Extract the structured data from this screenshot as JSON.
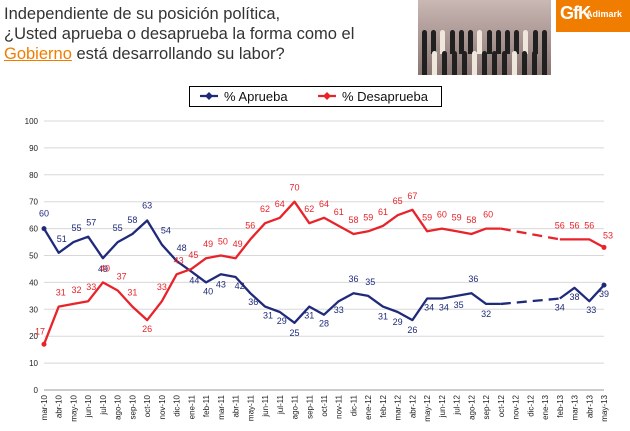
{
  "header": {
    "title_line1": "Independiente de su posición política,",
    "title_line2": "¿Usted aprueba o desaprueba la forma como el",
    "title_highlight": "Gobierno",
    "title_line3_rest": " está desarrollando su labor?",
    "logo_text": "GfK",
    "logo_sub": "Adimark"
  },
  "colors": {
    "aprueba": "#1f2a7a",
    "desaprueba": "#e8232a",
    "title": "#333333",
    "highlight": "#f07d00"
  },
  "chart_data": {
    "type": "line",
    "title": "",
    "xlabel": "",
    "ylabel": "",
    "ylim": [
      0,
      100
    ],
    "yticks": [
      0,
      10,
      20,
      30,
      40,
      50,
      60,
      70,
      80,
      90,
      100
    ],
    "grid": true,
    "legend_position": "top-center",
    "categories": [
      "mar-10",
      "abr-10",
      "may-10",
      "jun-10",
      "jul-10",
      "ago-10",
      "sep-10",
      "oct-10",
      "nov-10",
      "dic-10",
      "ene-11",
      "feb-11",
      "mar-11",
      "abr-11",
      "may-11",
      "jun-11",
      "jul-11",
      "ago-11",
      "sep-11",
      "oct-11",
      "nov-11",
      "dic-11",
      "ene-12",
      "feb-12",
      "mar-12",
      "abr-12",
      "may-12",
      "jun-12",
      "jul-12",
      "ago-12",
      "sep-12",
      "oct-12",
      "nov-12",
      "dic-12",
      "ene-13",
      "feb-13",
      "mar-13",
      "abr-13",
      "may-13"
    ],
    "series": [
      {
        "name": "% Aprueba",
        "values": [
          60,
          51,
          55,
          57,
          49,
          55,
          58,
          63,
          54,
          48,
          44,
          40,
          43,
          42,
          36,
          31,
          29,
          25,
          31,
          28,
          33,
          36,
          35,
          31,
          29,
          26,
          34,
          34,
          35,
          36,
          32,
          32,
          null,
          null,
          null,
          34,
          38,
          33,
          39
        ],
        "labels": [
          "60",
          "51",
          "55",
          "57",
          "49",
          "55",
          "58",
          "63",
          "54",
          "48",
          "44",
          "40",
          "43",
          "42",
          "36",
          "31",
          "29",
          "25",
          "31",
          "28",
          "33",
          "36",
          "35",
          "31",
          "29",
          "26",
          "34",
          "34",
          "35",
          "36",
          "32",
          "",
          "",
          "",
          "",
          "34",
          "38",
          "33",
          "39"
        ]
      },
      {
        "name": "% Desaprueba",
        "values": [
          17,
          31,
          32,
          33,
          40,
          37,
          31,
          26,
          33,
          43,
          45,
          49,
          50,
          49,
          56,
          62,
          64,
          70,
          62,
          64,
          61,
          58,
          59,
          61,
          65,
          67,
          59,
          60,
          59,
          58,
          60,
          60,
          null,
          null,
          null,
          56,
          56,
          56,
          53
        ],
        "labels": [
          "17",
          "31",
          "32",
          "33",
          "40",
          "37",
          "31",
          "26",
          "33",
          "43",
          "45",
          "49",
          "50",
          "49",
          "56",
          "62",
          "64",
          "70",
          "62",
          "64",
          "61",
          "58",
          "59",
          "61",
          "65",
          "67",
          "59",
          "60",
          "59",
          "58",
          "60",
          "",
          "",
          "",
          "",
          "56",
          "56",
          "56",
          "53"
        ]
      }
    ],
    "gap_start_index": 31,
    "gap_end_index": 35
  }
}
